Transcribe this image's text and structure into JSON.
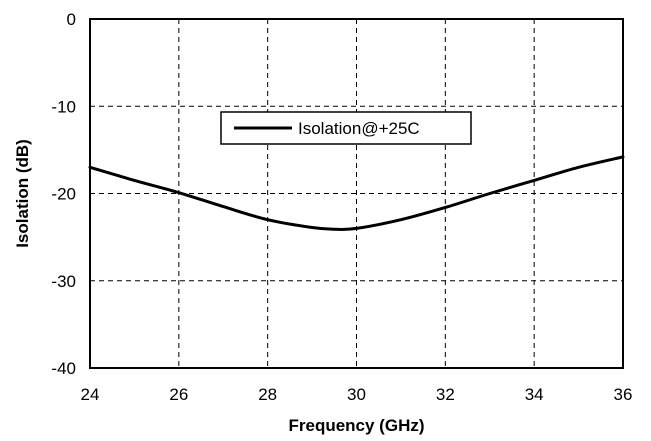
{
  "chart_data": {
    "type": "line",
    "xlabel": "Frequency (GHz)",
    "ylabel": "Isolation (dB)",
    "xlim": [
      24,
      36
    ],
    "ylim": [
      -40,
      0
    ],
    "x_ticks": [
      24,
      26,
      28,
      30,
      32,
      34,
      36
    ],
    "y_ticks": [
      0,
      -10,
      -20,
      -30,
      -40
    ],
    "x_tick_labels": [
      "24",
      "26",
      "28",
      "30",
      "32",
      "34",
      "36"
    ],
    "y_tick_labels": [
      "0",
      "-10",
      "-20",
      "-30",
      "-40"
    ],
    "grid": true,
    "legend_position": "top-center",
    "series": [
      {
        "name": "Isolation@+25C",
        "color": "#000000",
        "x": [
          24,
          25,
          26,
          27,
          28,
          29,
          29.5,
          30,
          31,
          32,
          33,
          34,
          35,
          36
        ],
        "y": [
          -17,
          -18.5,
          -19.9,
          -21.5,
          -23.0,
          -23.9,
          -24.1,
          -24.0,
          -23.0,
          -21.6,
          -20.0,
          -18.5,
          -17.0,
          -15.8
        ]
      }
    ]
  }
}
